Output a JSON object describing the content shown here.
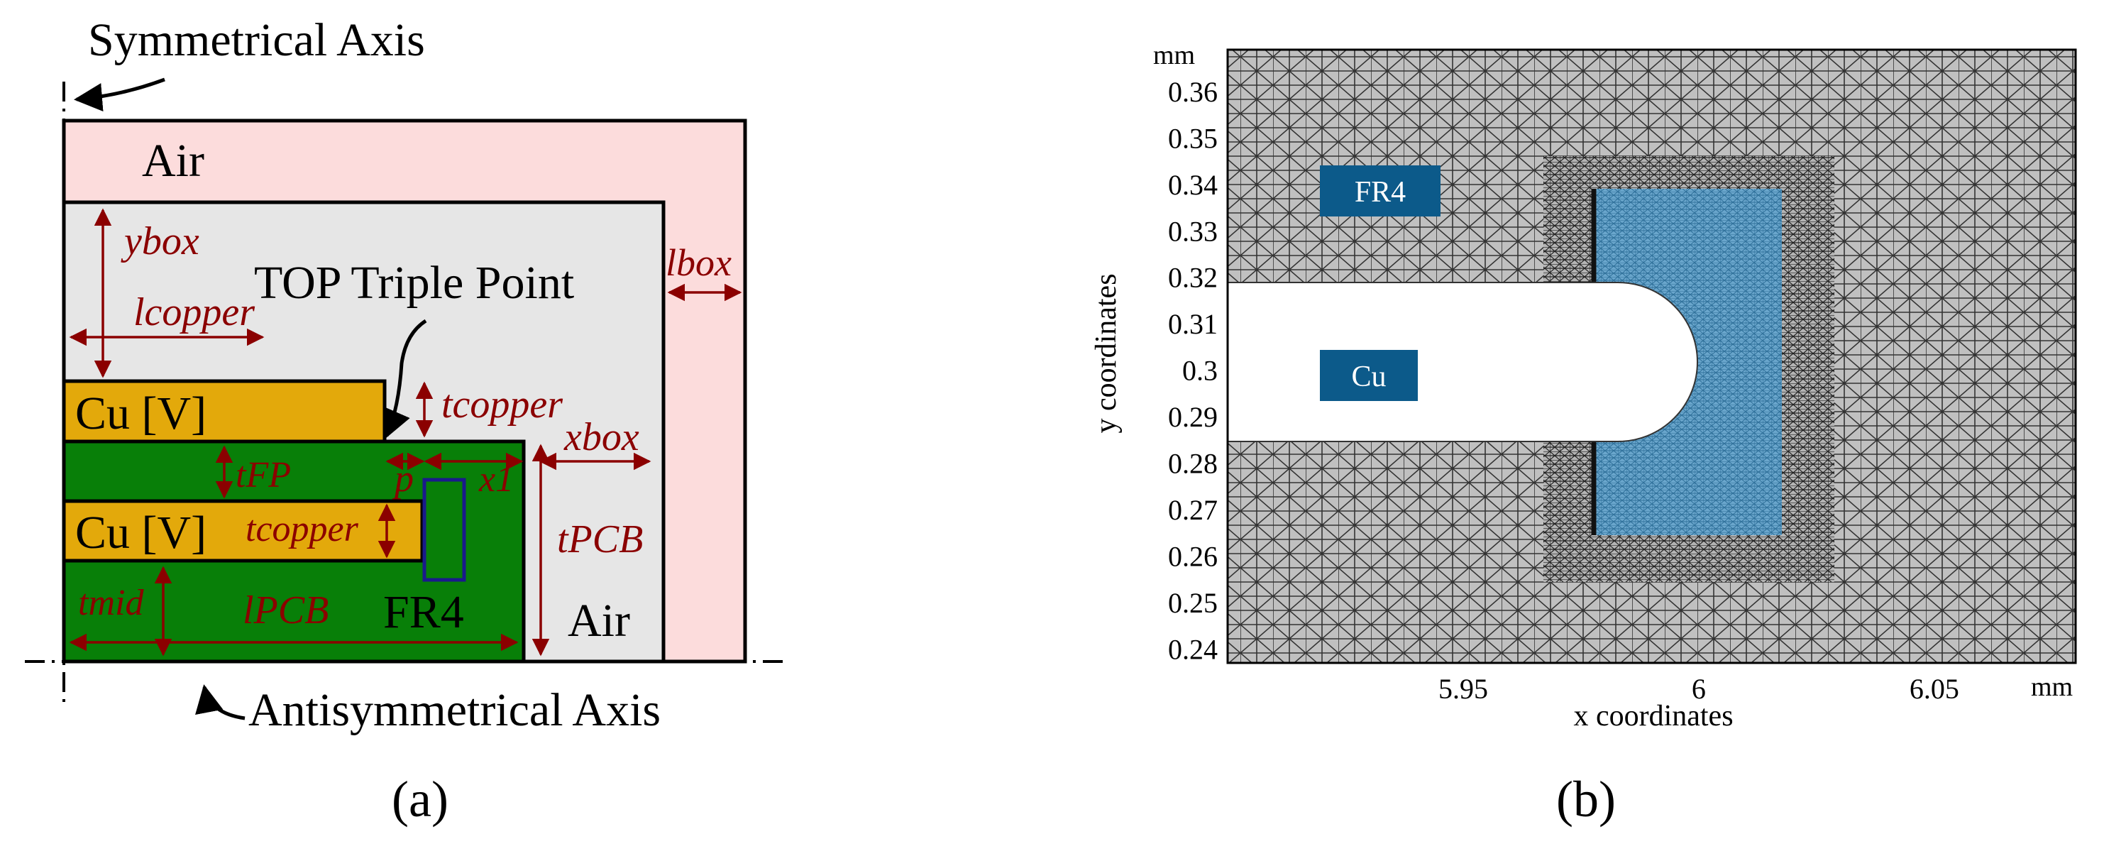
{
  "colors": {
    "outer_air": "#fcdcdc",
    "inner_air": "#e6e6e6",
    "copper": "#e3a90b",
    "fr4": "#087f08",
    "dimension": "#8b0000",
    "highlight_box": "#1a1a8c",
    "mesh_grey": "#c0c0c0",
    "mesh_blue": "#5a9ec9",
    "label_box": "#0c5a8a",
    "label_text": "#ffffff"
  },
  "panel_a": {
    "caption": "(a)",
    "symmetrical_axis": "Symmetrical Axis",
    "antisymmetrical_axis": "Antisymmetrical Axis",
    "top_triple_point": "TOP Triple Point",
    "regions": {
      "air_outer": "Air",
      "air_inner": "Air",
      "copper_top": "Cu [V]",
      "copper_mid": "Cu [V]",
      "fr4": "FR4"
    },
    "dimensions": {
      "ybox": "ybox",
      "lbox": "lbox",
      "lcopper": "lcopper",
      "tcopper_top": "tcopper",
      "xbox": "xbox",
      "tfp": "tFP",
      "p": "p",
      "x1": "x1",
      "tcopper_mid": "tcopper",
      "tpcb": "tPCB",
      "tmid": "tmid",
      "lpcb": "lPCB"
    }
  },
  "panel_b": {
    "caption": "(b)",
    "xlabel": "x coordinates",
    "ylabel": "y coordinates",
    "x_unit": "mm",
    "y_unit": "mm",
    "xlim": [
      5.9,
      6.08
    ],
    "ylim": [
      0.237,
      0.369
    ],
    "x_ticks": [
      "5.95",
      "6",
      "6.05"
    ],
    "y_ticks": [
      "0.36",
      "0.35",
      "0.34",
      "0.33",
      "0.32",
      "0.31",
      "0.3",
      "0.29",
      "0.28",
      "0.27",
      "0.26",
      "0.25",
      "0.24"
    ],
    "labels": {
      "fr4": "FR4",
      "cu": "Cu"
    }
  }
}
